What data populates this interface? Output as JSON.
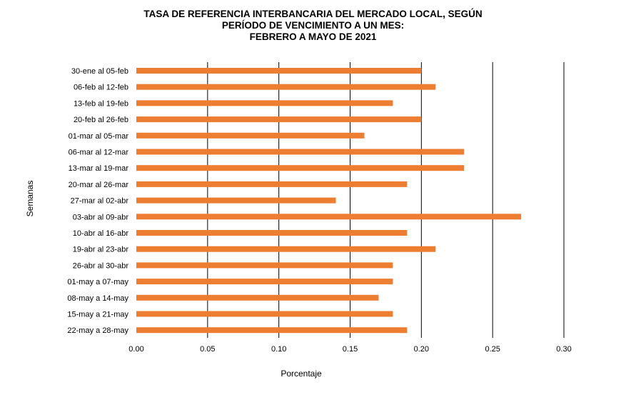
{
  "chart_data": {
    "type": "bar",
    "orientation": "horizontal",
    "title_lines": [
      "TASA DE REFERENCIA INTERBANCARIA DEL MERCADO LOCAL, SEGÚN",
      "PERÍODO DE VENCIMIENTO A UN MES:",
      "FEBRERO A MAYO DE 2021"
    ],
    "xlabel": "Porcentaje",
    "ylabel": "Semanas",
    "xlim": [
      0,
      0.3
    ],
    "xticks": [
      "0.00",
      "0.05",
      "0.10",
      "0.15",
      "0.20",
      "0.25",
      "0.30"
    ],
    "grid": "vertical",
    "bar_color": "#ED7D31",
    "categories": [
      "30-ene al 05-feb",
      "06-feb al 12-feb",
      "13-feb al 19-feb",
      "20-feb al 26-feb",
      "01-mar al 05-mar",
      "06-mar al 12-mar",
      "13-mar al 19-mar",
      "20-mar al 26-mar",
      "27-mar al 02-abr",
      "03-abr al 09-abr",
      "10-abr al 16-abr",
      "19-abr al 23-abr",
      "26-abr al 30-abr",
      "01-may a 07-may",
      "08-may a 14-may",
      "15-may a 21-may",
      "22-may a 28-may"
    ],
    "values": [
      0.2,
      0.21,
      0.18,
      0.2,
      0.16,
      0.23,
      0.23,
      0.19,
      0.14,
      0.27,
      0.19,
      0.21,
      0.18,
      0.18,
      0.17,
      0.18,
      0.19
    ]
  }
}
